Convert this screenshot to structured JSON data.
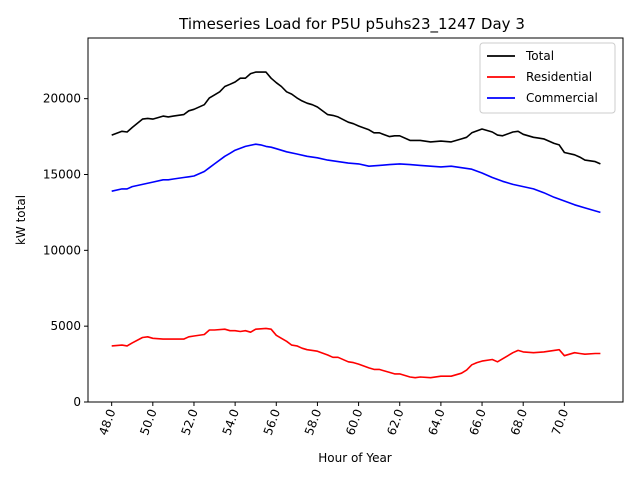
{
  "chart_data": {
    "type": "line",
    "title": "Timeseries Load for P5U p5uhs23_1247  Day 3",
    "xlabel": "Hour of Year",
    "ylabel": "kW total",
    "xlim": [
      46.85,
      72.85
    ],
    "ylim": [
      0,
      24000
    ],
    "xticks": [
      48,
      50,
      52,
      54,
      56,
      58,
      60,
      62,
      64,
      66,
      68,
      70
    ],
    "xtick_labels": [
      "48.0",
      "50.0",
      "52.0",
      "54.0",
      "56.0",
      "58.0",
      "60.0",
      "62.0",
      "64.0",
      "66.0",
      "68.0",
      "70.0"
    ],
    "yticks": [
      0,
      5000,
      10000,
      15000,
      20000
    ],
    "ytick_labels": [
      "0",
      "5000",
      "10000",
      "15000",
      "20000"
    ],
    "legend_position": "top-right",
    "series": [
      {
        "name": "Total",
        "color": "#000000",
        "x": [
          48.0,
          48.5,
          48.75,
          49.0,
          49.5,
          49.75,
          50.0,
          50.25,
          50.5,
          50.75,
          51.0,
          51.5,
          51.75,
          52.0,
          52.5,
          52.75,
          53.0,
          53.25,
          53.5,
          53.75,
          54.0,
          54.25,
          54.5,
          54.75,
          55.0,
          55.25,
          55.5,
          55.75,
          56.0,
          56.25,
          56.5,
          56.75,
          57.0,
          57.25,
          57.5,
          57.75,
          58.0,
          58.5,
          58.75,
          59.0,
          59.5,
          59.75,
          60.0,
          60.5,
          60.75,
          61.0,
          61.5,
          61.75,
          62.0,
          62.5,
          63.0,
          63.5,
          64.0,
          64.5,
          65.0,
          65.25,
          65.5,
          66.0,
          66.5,
          66.75,
          67.0,
          67.5,
          67.75,
          68.0,
          68.5,
          68.75,
          69.0,
          69.5,
          69.75,
          70.0,
          70.5,
          70.75,
          71.0,
          71.5,
          71.75
        ],
        "y": [
          17600,
          17850,
          17800,
          18100,
          18650,
          18700,
          18650,
          18750,
          18850,
          18800,
          18850,
          18950,
          19200,
          19300,
          19600,
          20050,
          20250,
          20450,
          20800,
          20950,
          21100,
          21350,
          21350,
          21650,
          21750,
          21750,
          21750,
          21350,
          21050,
          20800,
          20450,
          20300,
          20050,
          19850,
          19700,
          19600,
          19450,
          18950,
          18900,
          18800,
          18450,
          18350,
          18200,
          17950,
          17750,
          17750,
          17500,
          17550,
          17550,
          17250,
          17250,
          17150,
          17200,
          17150,
          17350,
          17450,
          17750,
          18000,
          17800,
          17600,
          17550,
          17800,
          17850,
          17650,
          17450,
          17400,
          17350,
          17050,
          16950,
          16450,
          16300,
          16150,
          15950,
          15850,
          15700
        ]
      },
      {
        "name": "Residential",
        "color": "#ff0000",
        "x": [
          48.0,
          48.5,
          48.75,
          49.0,
          49.5,
          49.75,
          50.0,
          50.5,
          51.0,
          51.5,
          51.75,
          52.0,
          52.5,
          52.75,
          53.0,
          53.5,
          53.75,
          54.0,
          54.25,
          54.5,
          54.75,
          55.0,
          55.5,
          55.75,
          56.0,
          56.25,
          56.5,
          56.75,
          57.0,
          57.25,
          57.5,
          57.75,
          58.0,
          58.5,
          58.75,
          59.0,
          59.5,
          59.75,
          60.0,
          60.5,
          60.75,
          61.0,
          61.5,
          61.75,
          62.0,
          62.5,
          62.75,
          63.0,
          63.5,
          64.0,
          64.5,
          65.0,
          65.25,
          65.5,
          65.75,
          66.0,
          66.5,
          66.75,
          67.0,
          67.5,
          67.75,
          68.0,
          68.5,
          69.0,
          69.5,
          69.75,
          70.0,
          70.5,
          70.75,
          71.0,
          71.5,
          71.75
        ],
        "y": [
          3700,
          3750,
          3700,
          3900,
          4250,
          4300,
          4200,
          4150,
          4150,
          4150,
          4300,
          4350,
          4450,
          4750,
          4750,
          4800,
          4700,
          4700,
          4650,
          4700,
          4600,
          4800,
          4850,
          4800,
          4400,
          4200,
          4000,
          3750,
          3700,
          3550,
          3450,
          3400,
          3350,
          3100,
          2950,
          2950,
          2650,
          2600,
          2500,
          2250,
          2150,
          2150,
          1950,
          1850,
          1850,
          1650,
          1600,
          1650,
          1600,
          1700,
          1700,
          1900,
          2100,
          2450,
          2600,
          2700,
          2800,
          2650,
          2850,
          3250,
          3400,
          3300,
          3250,
          3300,
          3400,
          3450,
          3050,
          3250,
          3200,
          3150,
          3200,
          3200
        ]
      },
      {
        "name": "Commercial",
        "color": "#0000ff",
        "x": [
          48.0,
          48.5,
          48.75,
          49.0,
          49.5,
          50.0,
          50.5,
          50.75,
          51.0,
          51.5,
          51.75,
          52.0,
          52.5,
          52.75,
          53.0,
          53.5,
          53.75,
          54.0,
          54.5,
          55.0,
          55.25,
          55.5,
          55.75,
          56.0,
          56.5,
          57.0,
          57.5,
          58.0,
          58.5,
          59.0,
          59.5,
          60.0,
          60.5,
          61.0,
          61.5,
          62.0,
          62.5,
          63.0,
          63.5,
          64.0,
          64.5,
          65.0,
          65.5,
          66.0,
          66.5,
          67.0,
          67.5,
          68.0,
          68.5,
          69.0,
          69.5,
          70.0,
          70.5,
          71.0,
          71.5,
          71.75
        ],
        "y": [
          13900,
          14050,
          14050,
          14200,
          14350,
          14500,
          14650,
          14650,
          14700,
          14800,
          14850,
          14900,
          15200,
          15450,
          15700,
          16200,
          16400,
          16600,
          16850,
          17000,
          16950,
          16850,
          16800,
          16700,
          16500,
          16350,
          16200,
          16100,
          15950,
          15850,
          15750,
          15700,
          15550,
          15600,
          15650,
          15700,
          15650,
          15600,
          15550,
          15500,
          15550,
          15450,
          15350,
          15100,
          14800,
          14550,
          14350,
          14200,
          14050,
          13800,
          13500,
          13250,
          13000,
          12800,
          12600,
          12500
        ]
      }
    ]
  }
}
